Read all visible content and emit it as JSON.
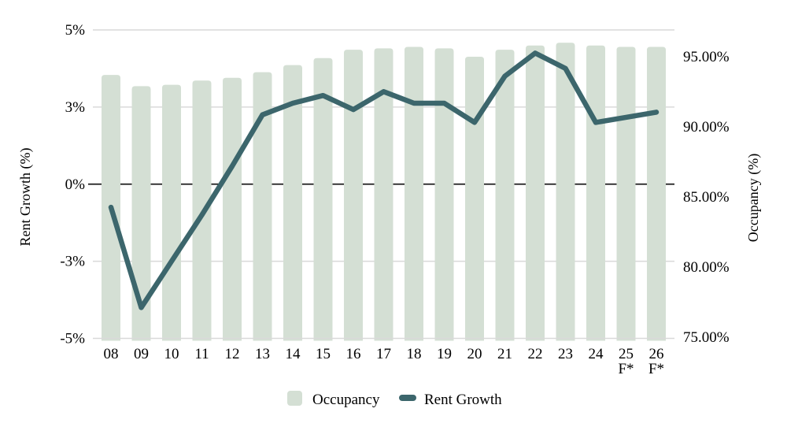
{
  "chart_data": {
    "type": "combo-bar-line",
    "title": "",
    "categories": [
      "08",
      "09",
      "10",
      "11",
      "12",
      "13",
      "14",
      "15",
      "16",
      "17",
      "18",
      "19",
      "20",
      "21",
      "22",
      "23",
      "24",
      "25",
      "26"
    ],
    "category_sublabels": [
      "",
      "",
      "",
      "",
      "",
      "",
      "",
      "",
      "",
      "",
      "",
      "",
      "",
      "",
      "",
      "",
      "",
      "F*",
      "F*"
    ],
    "series": [
      {
        "name": "Occupancy",
        "type": "bar",
        "axis": "right",
        "color": "#d4dfd4",
        "values": [
          93.7,
          92.9,
          93.0,
          93.3,
          93.5,
          93.9,
          94.4,
          94.9,
          95.5,
          95.6,
          95.7,
          95.6,
          95.0,
          95.5,
          95.8,
          96.0,
          95.8,
          95.7,
          95.7
        ]
      },
      {
        "name": "Rent Growth",
        "type": "line",
        "axis": "left",
        "color": "#3c666c",
        "values": [
          -0.9,
          -4.2,
          -3.0,
          -1.2,
          0.7,
          2.7,
          3.1,
          3.3,
          2.9,
          3.4,
          3.1,
          3.1,
          2.4,
          3.8,
          4.4,
          4.0,
          2.4,
          2.6,
          2.8
        ]
      }
    ],
    "left_axis": {
      "label": "Rent Growth (%)",
      "tick_labels": [
        "5%",
        "3%",
        "0%",
        "-3%",
        "-5%"
      ],
      "tick_values": [
        5,
        3,
        0,
        -3,
        -5
      ],
      "zero_line_dashed_dark": true
    },
    "right_axis": {
      "label": "Occupancy (%)",
      "tick_labels": [
        "95.00%",
        "90.00%",
        "85.00%",
        "80.00%",
        "75.00%"
      ],
      "tick_values": [
        95,
        90,
        85,
        80,
        75
      ],
      "min": 75
    },
    "legend": [
      {
        "label": "Occupancy",
        "swatch": "square"
      },
      {
        "label": "Rent Growth",
        "swatch": "line"
      }
    ],
    "styles": {
      "bar_color": "#d4dfd4",
      "line_color": "#3c666c",
      "grid_color": "#d9d9d9",
      "zero_line_color": "#1f1f1f",
      "text_color": "#000000"
    }
  }
}
